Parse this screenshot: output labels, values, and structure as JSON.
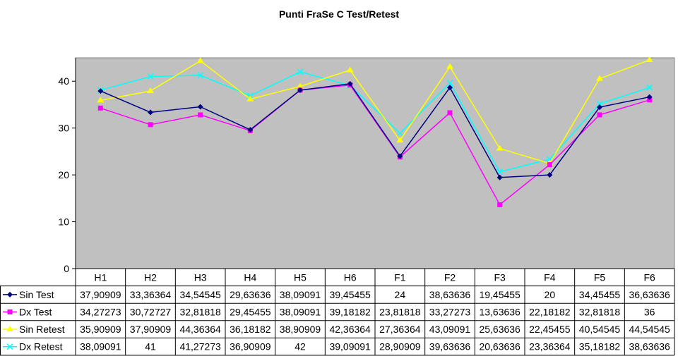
{
  "chart_data": {
    "type": "line",
    "title": "Punti FraSe C Test/Retest",
    "categories": [
      "H1",
      "H2",
      "H3",
      "H4",
      "H5",
      "H6",
      "F1",
      "F2",
      "F3",
      "F4",
      "F5",
      "F6"
    ],
    "ylim": [
      0,
      45
    ],
    "yticks": [
      0,
      10,
      20,
      30,
      40
    ],
    "grid": false,
    "plot_background": "#C0C0C0",
    "legend": "data-table-left",
    "series": [
      {
        "name": "Sin Test",
        "color": "#000080",
        "marker": "diamond",
        "values": [
          37.90909,
          33.36364,
          34.54545,
          29.63636,
          38.09091,
          39.45455,
          24,
          38.63636,
          19.45455,
          20,
          34.45455,
          36.63636
        ],
        "labels": [
          "37,90909",
          "33,36364",
          "34,54545",
          "29,63636",
          "38,09091",
          "39,45455",
          "24",
          "38,63636",
          "19,45455",
          "20",
          "34,45455",
          "36,63636"
        ]
      },
      {
        "name": "Dx Test",
        "color": "#FF00FF",
        "marker": "square",
        "values": [
          34.27273,
          30.72727,
          32.81818,
          29.45455,
          38.09091,
          39.18182,
          23.81818,
          33.27273,
          13.63636,
          22.18182,
          32.81818,
          36
        ],
        "labels": [
          "34,27273",
          "30,72727",
          "32,81818",
          "29,45455",
          "38,09091",
          "39,18182",
          "23,81818",
          "33,27273",
          "13,63636",
          "22,18182",
          "32,81818",
          "36"
        ]
      },
      {
        "name": "Sin Retest",
        "color": "#FFFF00",
        "marker": "triangle",
        "values": [
          35.90909,
          37.90909,
          44.36364,
          36.18182,
          38.90909,
          42.36364,
          27.36364,
          43.09091,
          25.63636,
          22.45455,
          40.54545,
          44.54545
        ],
        "labels": [
          "35,90909",
          "37,90909",
          "44,36364",
          "36,18182",
          "38,90909",
          "42,36364",
          "27,36364",
          "43,09091",
          "25,63636",
          "22,45455",
          "40,54545",
          "44,54545"
        ]
      },
      {
        "name": "Dx Retest",
        "color": "#00FFFF",
        "marker": "x",
        "values": [
          38.09091,
          41,
          41.27273,
          36.90909,
          42,
          39.09091,
          28.90909,
          39.63636,
          20.63636,
          23.36364,
          35.18182,
          38.63636
        ],
        "labels": [
          "38,09091",
          "41",
          "41,27273",
          "36,90909",
          "42",
          "39,09091",
          "28,90909",
          "39,63636",
          "20,63636",
          "23,36364",
          "35,18182",
          "38,63636"
        ]
      }
    ]
  }
}
